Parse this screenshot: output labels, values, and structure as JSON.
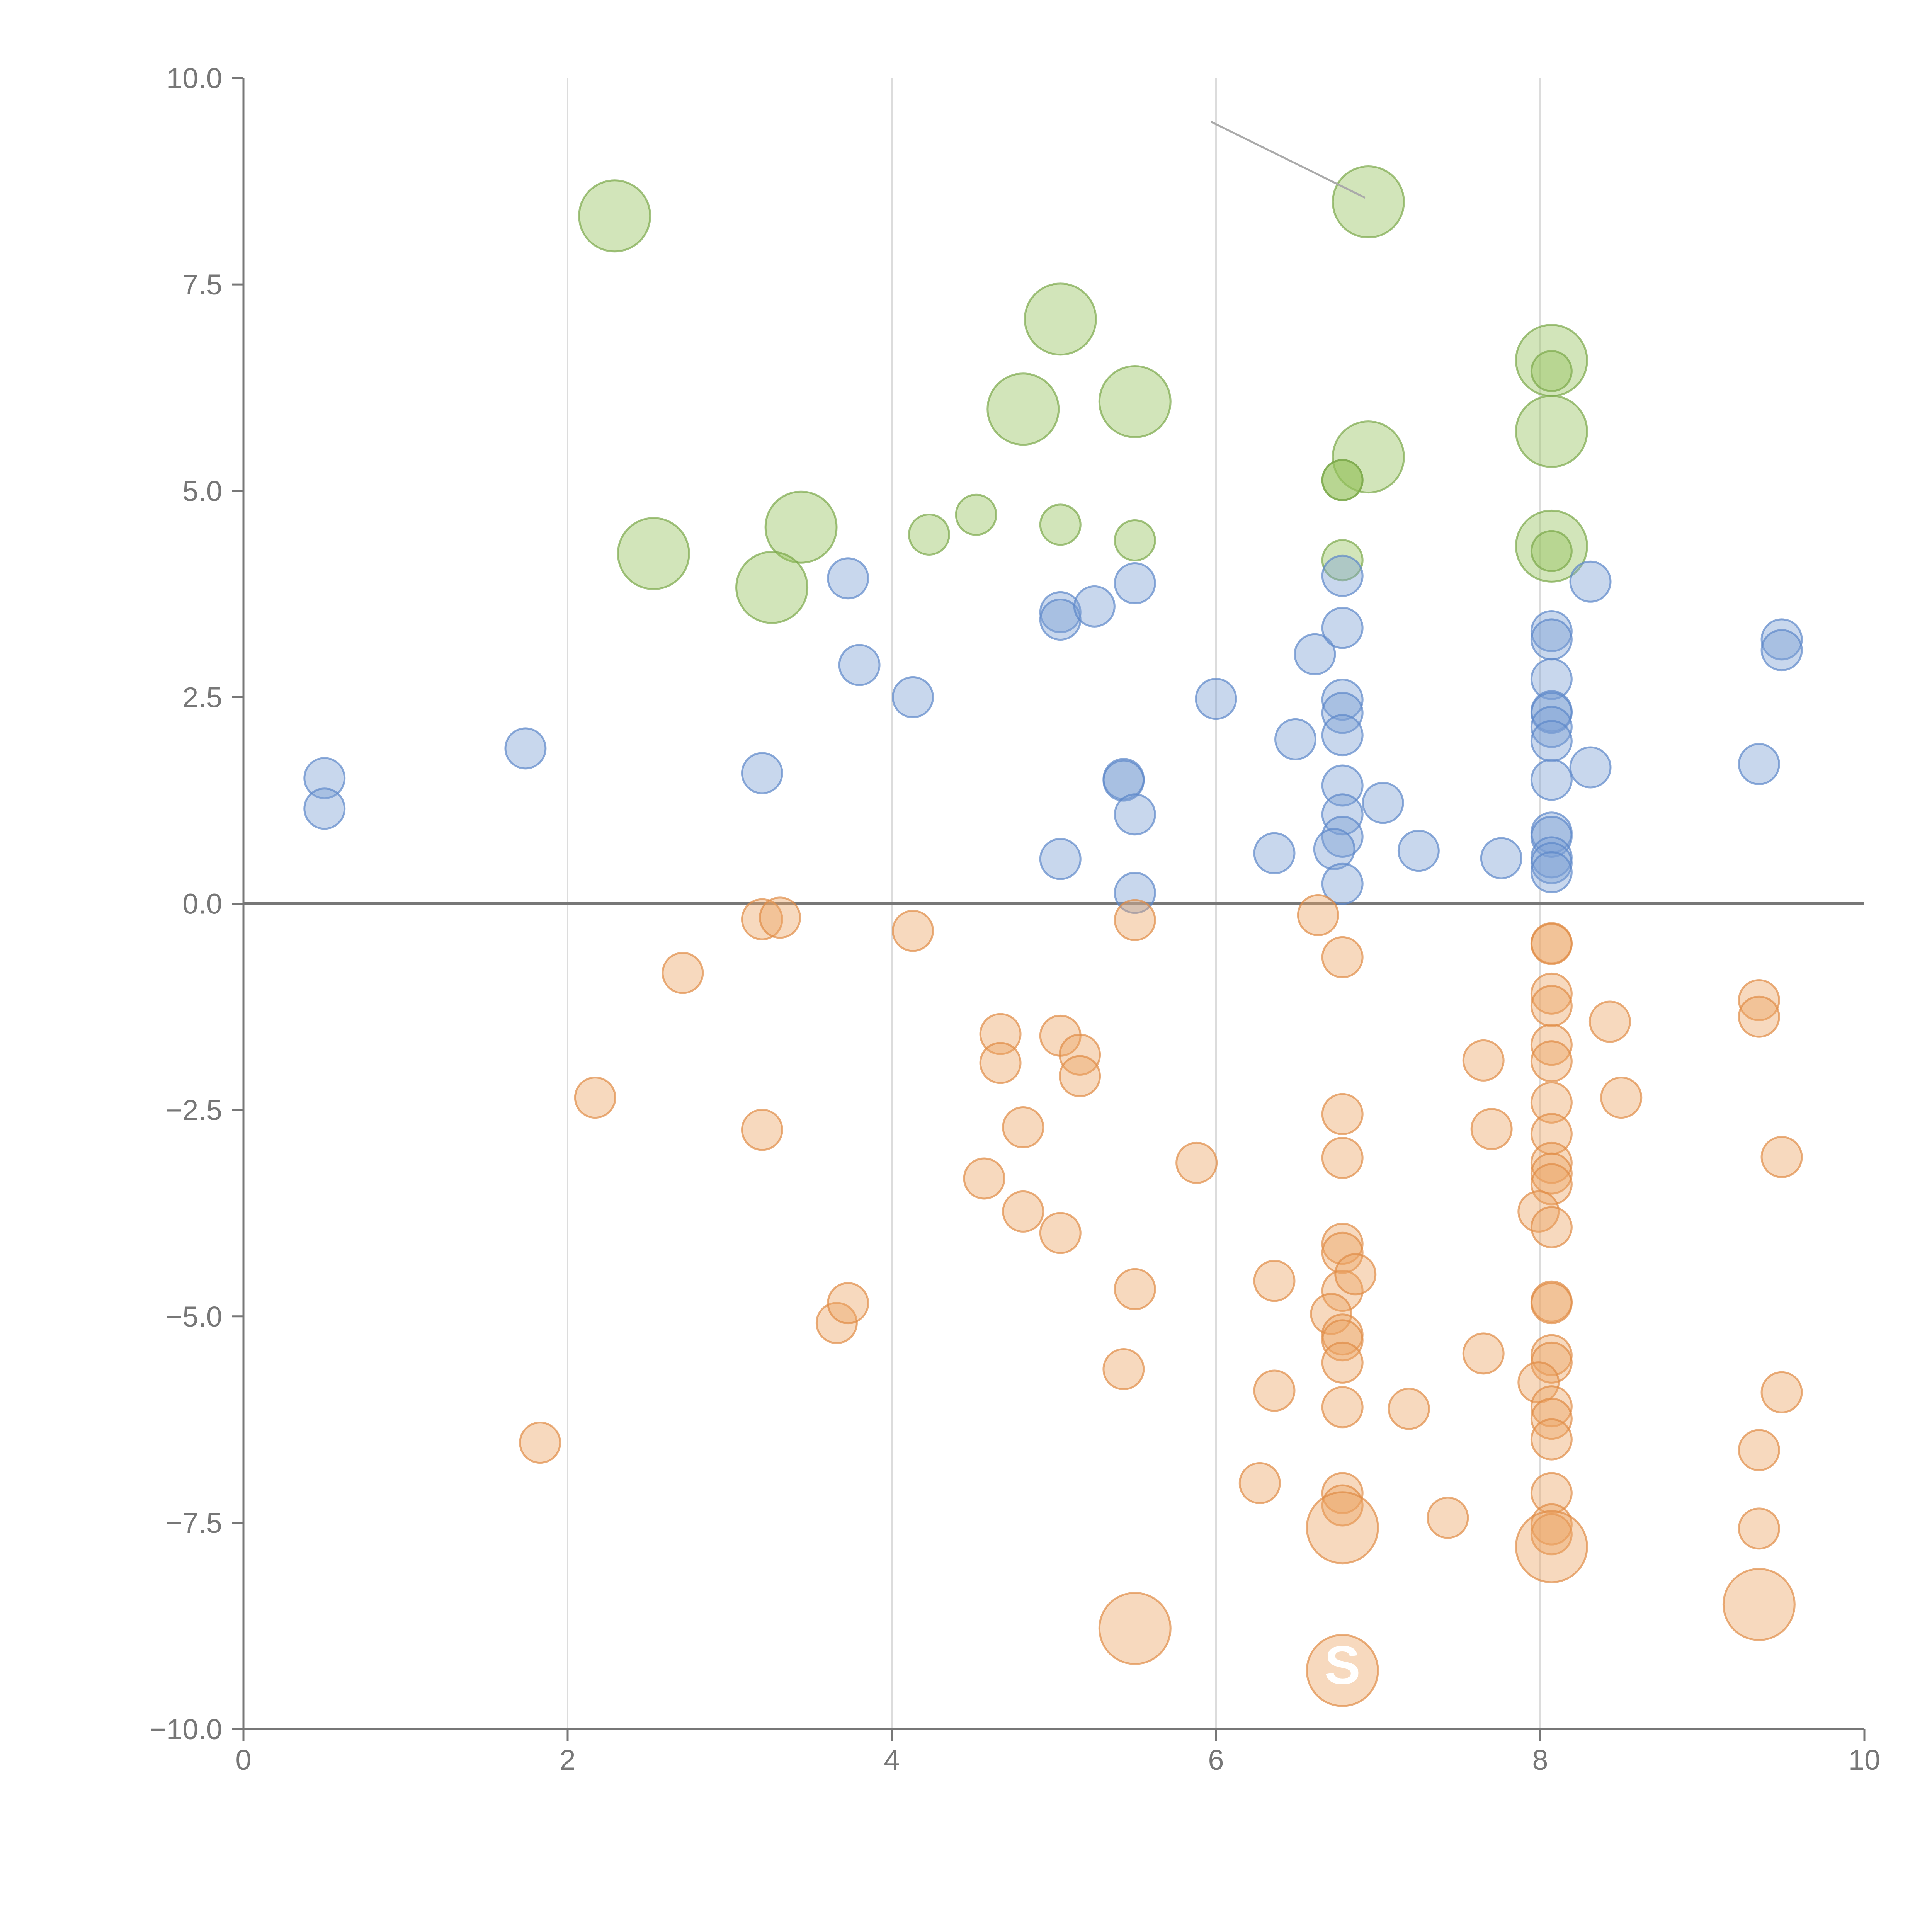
{
  "chart_data": {
    "type": "scatter",
    "title": "",
    "xlabel": "",
    "ylabel": "",
    "xlim": [
      0,
      10
    ],
    "ylim": [
      -10,
      10
    ],
    "x_ticks": [
      "0",
      "2",
      "4",
      "6",
      "8",
      "10"
    ],
    "y_ticks": [
      "10.0",
      "7.5",
      "5.0",
      "2.5",
      "0.0",
      "−2.5",
      "−5.0",
      "−7.5",
      "−10.0"
    ],
    "x_tick_values": [
      0,
      2,
      4,
      6,
      8,
      10
    ],
    "y_tick_values": [
      10,
      7.5,
      5,
      2.5,
      0,
      -2.5,
      -5,
      -7.5,
      -10
    ],
    "vertical_grid_at": [
      2,
      4,
      6,
      8
    ],
    "zero_line": 0,
    "legend": "none",
    "size_unit_note": "size = relative bubble size (1 = small, 2 = large)",
    "series": [
      {
        "name": "green",
        "color": "#93c15a",
        "stroke": "#7aa84a",
        "points": [
          {
            "x": 2.29,
            "y": 8.33,
            "s": 2
          },
          {
            "x": 6.94,
            "y": 8.5,
            "s": 2
          },
          {
            "x": 5.04,
            "y": 7.08,
            "s": 2
          },
          {
            "x": 4.81,
            "y": 5.99,
            "s": 2
          },
          {
            "x": 5.5,
            "y": 6.08,
            "s": 2
          },
          {
            "x": 8.07,
            "y": 6.58,
            "s": 2
          },
          {
            "x": 8.07,
            "y": 5.72,
            "s": 2
          },
          {
            "x": 6.94,
            "y": 5.41,
            "s": 2
          },
          {
            "x": 2.53,
            "y": 4.24,
            "s": 2
          },
          {
            "x": 3.44,
            "y": 4.56,
            "s": 2
          },
          {
            "x": 3.26,
            "y": 3.83,
            "s": 2
          },
          {
            "x": 8.07,
            "y": 4.33,
            "s": 2
          },
          {
            "x": 4.23,
            "y": 4.47,
            "s": 1
          },
          {
            "x": 4.52,
            "y": 4.71,
            "s": 1
          },
          {
            "x": 5.04,
            "y": 4.59,
            "s": 1
          },
          {
            "x": 5.5,
            "y": 4.4,
            "s": 1
          },
          {
            "x": 6.78,
            "y": 5.13,
            "s": 1
          },
          {
            "x": 6.78,
            "y": 5.13,
            "s": 1
          },
          {
            "x": 6.78,
            "y": 4.16,
            "s": 1
          },
          {
            "x": 8.07,
            "y": 6.45,
            "s": 1
          },
          {
            "x": 8.07,
            "y": 4.27,
            "s": 1
          }
        ]
      },
      {
        "name": "blue",
        "color": "#7b9fd4",
        "stroke": "#5d87c9",
        "points": [
          {
            "x": 0.5,
            "y": 1.52,
            "s": 1
          },
          {
            "x": 0.5,
            "y": 1.15,
            "s": 1
          },
          {
            "x": 1.74,
            "y": 1.88,
            "s": 1
          },
          {
            "x": 3.2,
            "y": 1.58,
            "s": 1
          },
          {
            "x": 3.73,
            "y": 3.94,
            "s": 1
          },
          {
            "x": 3.8,
            "y": 2.89,
            "s": 1
          },
          {
            "x": 4.13,
            "y": 2.5,
            "s": 1
          },
          {
            "x": 5.04,
            "y": 3.53,
            "s": 1
          },
          {
            "x": 5.04,
            "y": 3.44,
            "s": 1
          },
          {
            "x": 5.25,
            "y": 3.6,
            "s": 1
          },
          {
            "x": 5.5,
            "y": 3.88,
            "s": 1
          },
          {
            "x": 5.04,
            "y": 0.54,
            "s": 1
          },
          {
            "x": 5.43,
            "y": 1.51,
            "s": 1
          },
          {
            "x": 5.43,
            "y": 1.49,
            "s": 1
          },
          {
            "x": 5.5,
            "y": 1.08,
            "s": 1
          },
          {
            "x": 5.5,
            "y": 0.13,
            "s": 1
          },
          {
            "x": 6.0,
            "y": 2.48,
            "s": 1
          },
          {
            "x": 6.36,
            "y": 0.61,
            "s": 1
          },
          {
            "x": 6.49,
            "y": 1.99,
            "s": 1
          },
          {
            "x": 6.61,
            "y": 3.02,
            "s": 1
          },
          {
            "x": 6.78,
            "y": 3.97,
            "s": 1
          },
          {
            "x": 6.78,
            "y": 3.34,
            "s": 1
          },
          {
            "x": 6.78,
            "y": 2.47,
            "s": 1
          },
          {
            "x": 6.78,
            "y": 2.31,
            "s": 1
          },
          {
            "x": 6.78,
            "y": 2.04,
            "s": 1
          },
          {
            "x": 6.78,
            "y": 1.43,
            "s": 1
          },
          {
            "x": 6.78,
            "y": 1.08,
            "s": 1
          },
          {
            "x": 6.78,
            "y": 0.81,
            "s": 1
          },
          {
            "x": 6.73,
            "y": 0.66,
            "s": 1
          },
          {
            "x": 6.78,
            "y": 0.24,
            "s": 1
          },
          {
            "x": 7.03,
            "y": 1.22,
            "s": 1
          },
          {
            "x": 7.25,
            "y": 0.64,
            "s": 1
          },
          {
            "x": 7.76,
            "y": 0.55,
            "s": 1
          },
          {
            "x": 8.07,
            "y": 3.3,
            "s": 1
          },
          {
            "x": 8.07,
            "y": 3.2,
            "s": 1
          },
          {
            "x": 8.07,
            "y": 2.72,
            "s": 1
          },
          {
            "x": 8.07,
            "y": 2.33,
            "s": 1
          },
          {
            "x": 8.07,
            "y": 2.31,
            "s": 1
          },
          {
            "x": 8.07,
            "y": 2.14,
            "s": 1
          },
          {
            "x": 8.07,
            "y": 1.97,
            "s": 1
          },
          {
            "x": 8.07,
            "y": 1.5,
            "s": 1
          },
          {
            "x": 8.07,
            "y": 0.86,
            "s": 1
          },
          {
            "x": 8.07,
            "y": 0.81,
            "s": 1
          },
          {
            "x": 8.07,
            "y": 0.56,
            "s": 1
          },
          {
            "x": 8.07,
            "y": 0.49,
            "s": 1
          },
          {
            "x": 8.07,
            "y": 0.38,
            "s": 1
          },
          {
            "x": 8.31,
            "y": 3.9,
            "s": 1
          },
          {
            "x": 8.31,
            "y": 1.65,
            "s": 1
          },
          {
            "x": 9.35,
            "y": 1.69,
            "s": 1
          },
          {
            "x": 9.49,
            "y": 3.2,
            "s": 1
          },
          {
            "x": 9.49,
            "y": 3.07,
            "s": 1
          }
        ]
      },
      {
        "name": "orange",
        "color": "#eca565",
        "stroke": "#e08b46",
        "points": [
          {
            "x": 3.2,
            "y": -0.19,
            "s": 1
          },
          {
            "x": 3.31,
            "y": -0.17,
            "s": 1
          },
          {
            "x": 4.13,
            "y": -0.33,
            "s": 1
          },
          {
            "x": 5.5,
            "y": -0.2,
            "s": 1
          },
          {
            "x": 6.63,
            "y": -0.14,
            "s": 1
          },
          {
            "x": 6.78,
            "y": -0.65,
            "s": 1
          },
          {
            "x": 2.71,
            "y": -0.84,
            "s": 1
          },
          {
            "x": 2.17,
            "y": -2.35,
            "s": 1
          },
          {
            "x": 3.2,
            "y": -2.74,
            "s": 1
          },
          {
            "x": 1.83,
            "y": -6.53,
            "s": 1
          },
          {
            "x": 3.66,
            "y": -5.08,
            "s": 1
          },
          {
            "x": 3.73,
            "y": -4.84,
            "s": 1
          },
          {
            "x": 4.57,
            "y": -3.33,
            "s": 1
          },
          {
            "x": 4.81,
            "y": -3.73,
            "s": 1
          },
          {
            "x": 4.67,
            "y": -1.58,
            "s": 1
          },
          {
            "x": 4.67,
            "y": -1.93,
            "s": 1
          },
          {
            "x": 4.81,
            "y": -2.71,
            "s": 1
          },
          {
            "x": 5.04,
            "y": -1.6,
            "s": 1
          },
          {
            "x": 5.16,
            "y": -1.83,
            "s": 1
          },
          {
            "x": 5.16,
            "y": -2.09,
            "s": 1
          },
          {
            "x": 5.04,
            "y": -3.99,
            "s": 1
          },
          {
            "x": 5.5,
            "y": -4.67,
            "s": 1
          },
          {
            "x": 5.43,
            "y": -5.64,
            "s": 1
          },
          {
            "x": 5.88,
            "y": -3.14,
            "s": 1
          },
          {
            "x": 6.27,
            "y": -7.02,
            "s": 1
          },
          {
            "x": 6.36,
            "y": -4.57,
            "s": 1
          },
          {
            "x": 6.36,
            "y": -5.9,
            "s": 1
          },
          {
            "x": 6.78,
            "y": -2.55,
            "s": 1
          },
          {
            "x": 6.78,
            "y": -3.08,
            "s": 1
          },
          {
            "x": 6.78,
            "y": -4.12,
            "s": 1
          },
          {
            "x": 6.78,
            "y": -4.23,
            "s": 1
          },
          {
            "x": 6.78,
            "y": -4.69,
            "s": 1
          },
          {
            "x": 6.86,
            "y": -4.49,
            "s": 1
          },
          {
            "x": 6.71,
            "y": -4.97,
            "s": 1
          },
          {
            "x": 6.78,
            "y": -5.22,
            "s": 1
          },
          {
            "x": 6.78,
            "y": -5.29,
            "s": 1
          },
          {
            "x": 6.78,
            "y": -5.56,
            "s": 1
          },
          {
            "x": 6.78,
            "y": -6.1,
            "s": 1
          },
          {
            "x": 6.78,
            "y": -7.14,
            "s": 1
          },
          {
            "x": 6.78,
            "y": -7.29,
            "s": 1
          },
          {
            "x": 7.19,
            "y": -6.12,
            "s": 1
          },
          {
            "x": 7.43,
            "y": -7.44,
            "s": 1
          },
          {
            "x": 7.65,
            "y": -1.9,
            "s": 1
          },
          {
            "x": 7.7,
            "y": -2.73,
            "s": 1
          },
          {
            "x": 7.65,
            "y": -5.45,
            "s": 1
          },
          {
            "x": 8.07,
            "y": -0.48,
            "s": 1
          },
          {
            "x": 8.07,
            "y": -0.49,
            "s": 1
          },
          {
            "x": 8.07,
            "y": -1.09,
            "s": 1
          },
          {
            "x": 8.07,
            "y": -1.24,
            "s": 1
          },
          {
            "x": 8.07,
            "y": -1.71,
            "s": 1
          },
          {
            "x": 8.07,
            "y": -1.91,
            "s": 1
          },
          {
            "x": 8.07,
            "y": -2.41,
            "s": 1
          },
          {
            "x": 8.07,
            "y": -2.79,
            "s": 1
          },
          {
            "x": 8.07,
            "y": -3.14,
            "s": 1
          },
          {
            "x": 8.07,
            "y": -3.27,
            "s": 1
          },
          {
            "x": 8.07,
            "y": -3.4,
            "s": 1
          },
          {
            "x": 7.99,
            "y": -3.73,
            "s": 1
          },
          {
            "x": 8.07,
            "y": -3.92,
            "s": 1
          },
          {
            "x": 8.07,
            "y": -4.82,
            "s": 1
          },
          {
            "x": 8.07,
            "y": -4.84,
            "s": 1
          },
          {
            "x": 8.07,
            "y": -5.47,
            "s": 1
          },
          {
            "x": 8.07,
            "y": -5.56,
            "s": 1
          },
          {
            "x": 7.99,
            "y": -5.8,
            "s": 1
          },
          {
            "x": 8.07,
            "y": -6.09,
            "s": 1
          },
          {
            "x": 8.07,
            "y": -6.24,
            "s": 1
          },
          {
            "x": 8.07,
            "y": -6.49,
            "s": 1
          },
          {
            "x": 8.07,
            "y": -7.14,
            "s": 1
          },
          {
            "x": 8.07,
            "y": -7.52,
            "s": 1
          },
          {
            "x": 8.07,
            "y": -7.64,
            "s": 1
          },
          {
            "x": 8.43,
            "y": -1.43,
            "s": 1
          },
          {
            "x": 8.5,
            "y": -2.35,
            "s": 1
          },
          {
            "x": 9.35,
            "y": -1.17,
            "s": 1
          },
          {
            "x": 9.35,
            "y": -1.37,
            "s": 1
          },
          {
            "x": 9.49,
            "y": -3.07,
            "s": 1
          },
          {
            "x": 9.49,
            "y": -5.92,
            "s": 1
          },
          {
            "x": 9.35,
            "y": -6.62,
            "s": 1
          },
          {
            "x": 9.35,
            "y": -7.57,
            "s": 1
          },
          {
            "x": 6.78,
            "y": -7.56,
            "s": 2
          },
          {
            "x": 8.07,
            "y": -7.79,
            "s": 2
          },
          {
            "x": 9.35,
            "y": -8.49,
            "s": 2
          },
          {
            "x": 5.5,
            "y": -8.78,
            "s": 2
          },
          {
            "x": 6.78,
            "y": -9.29,
            "s": 2
          }
        ]
      }
    ],
    "annotations": [
      {
        "text": "S",
        "x": 6.78,
        "y": -9.45
      },
      {
        "type": "leader-line",
        "from": [
          5.97,
          9.47
        ],
        "to": [
          6.92,
          8.55
        ]
      }
    ]
  }
}
